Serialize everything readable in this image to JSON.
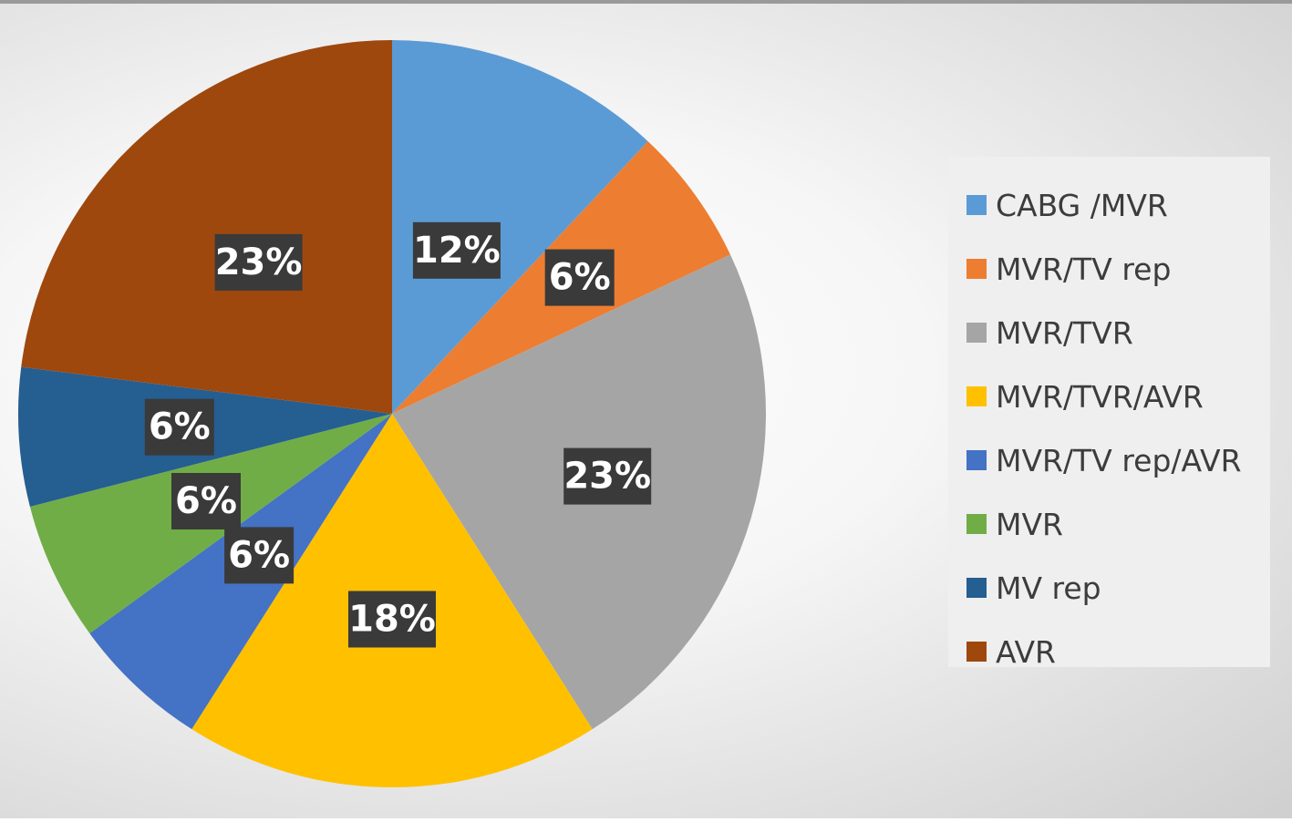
{
  "chart_data": {
    "type": "pie",
    "title": "",
    "legend_position": "right",
    "slices": [
      {
        "label": "CABG /MVR",
        "value": 12,
        "display": "12%",
        "color": "#5b9bd5"
      },
      {
        "label": "MVR/TV rep",
        "value": 6,
        "display": "6%",
        "color": "#ed7d31"
      },
      {
        "label": "MVR/TVR",
        "value": 23,
        "display": "23%",
        "color": "#a5a5a5"
      },
      {
        "label": "MVR/TVR/AVR",
        "value": 18,
        "display": "18%",
        "color": "#ffc000"
      },
      {
        "label": "MVR/TV rep/AVR",
        "value": 6,
        "display": "6%",
        "color": "#4472c4"
      },
      {
        "label": "MVR",
        "value": 6,
        "display": "6%",
        "color": "#70ad47"
      },
      {
        "label": "MV rep",
        "value": 6,
        "display": "6%",
        "color": "#255e91"
      },
      {
        "label": "AVR",
        "value": 23,
        "display": "23%",
        "color": "#9e480e"
      }
    ]
  }
}
